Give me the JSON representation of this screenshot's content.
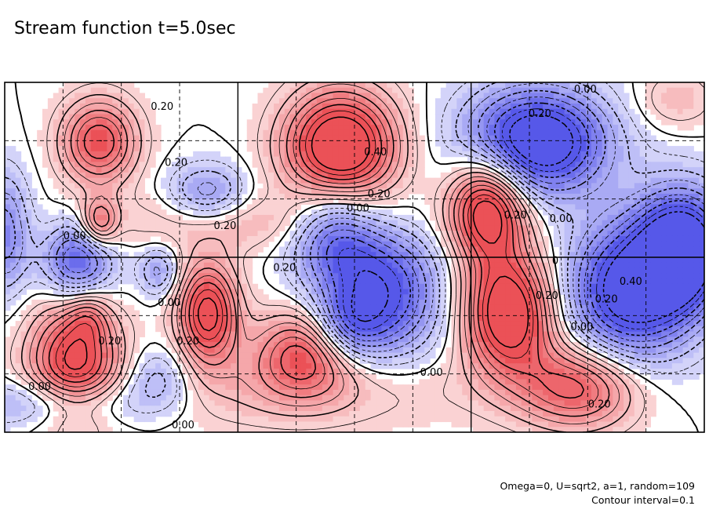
{
  "chart_data": {
    "type": "contour",
    "title": "Stream function t=5.0sec",
    "contour_interval": "Contour interval=0.1",
    "parameters": "Omega=0, U=sqrt2, a=1, random=109",
    "grid": true,
    "grid_columns": 6,
    "grid_rows": 3,
    "contour_labels": [
      {
        "text": "0.20",
        "x": 0.225,
        "y": 0.93
      },
      {
        "text": "0.20",
        "x": 0.245,
        "y": 0.77
      },
      {
        "text": "0.40",
        "x": 0.53,
        "y": 0.8
      },
      {
        "text": "0.20",
        "x": 0.535,
        "y": 0.68
      },
      {
        "text": "0.00",
        "x": 0.505,
        "y": 0.64
      },
      {
        "text": "0.00",
        "x": 0.1,
        "y": 0.56
      },
      {
        "text": "0.20",
        "x": 0.315,
        "y": 0.59
      },
      {
        "text": "0.20",
        "x": 0.4,
        "y": 0.47
      },
      {
        "text": "0.00",
        "x": 0.235,
        "y": 0.37
      },
      {
        "text": "0.20",
        "x": 0.262,
        "y": 0.26
      },
      {
        "text": "0.20",
        "x": 0.15,
        "y": 0.26
      },
      {
        "text": "0.00",
        "x": 0.05,
        "y": 0.13
      },
      {
        "text": "0.00",
        "x": 0.255,
        "y": 0.02
      },
      {
        "text": "0.00",
        "x": 0.61,
        "y": 0.17
      },
      {
        "text": "0.00",
        "x": 0.83,
        "y": 0.98
      },
      {
        "text": "0.20",
        "x": 0.765,
        "y": 0.91
      },
      {
        "text": "0.20",
        "x": 0.73,
        "y": 0.62
      },
      {
        "text": "0.00",
        "x": 0.795,
        "y": 0.61
      },
      {
        "text": "0",
        "x": 0.787,
        "y": 0.49
      },
      {
        "text": "0.20",
        "x": 0.775,
        "y": 0.39
      },
      {
        "text": "0.00",
        "x": 0.825,
        "y": 0.3
      },
      {
        "text": "0.20",
        "x": 0.86,
        "y": 0.38
      },
      {
        "text": "0.40",
        "x": 0.895,
        "y": 0.43
      },
      {
        "text": "0.20",
        "x": 0.85,
        "y": 0.08
      }
    ],
    "positive_extrema": [
      {
        "x": 0.135,
        "y": 0.83,
        "amp": 3.2,
        "sx": 0.038,
        "sy": 0.085
      },
      {
        "x": 0.48,
        "y": 0.81,
        "amp": 5.0,
        "sx": 0.055,
        "sy": 0.115
      },
      {
        "x": 0.69,
        "y": 0.64,
        "amp": 4.4,
        "sx": 0.038,
        "sy": 0.105
      },
      {
        "x": 0.135,
        "y": 0.6,
        "amp": 2.4,
        "sx": 0.018,
        "sy": 0.048
      },
      {
        "x": 0.29,
        "y": 0.34,
        "amp": 4.0,
        "sx": 0.03,
        "sy": 0.1
      },
      {
        "x": 0.1,
        "y": 0.2,
        "amp": 3.8,
        "sx": 0.045,
        "sy": 0.12
      },
      {
        "x": 0.12,
        "y": 0.33,
        "amp": 1.2,
        "sx": 0.02,
        "sy": 0.05
      },
      {
        "x": 0.43,
        "y": 0.23,
        "amp": 3.0,
        "sx": 0.05,
        "sy": 0.085
      },
      {
        "x": 0.72,
        "y": 0.34,
        "amp": 4.6,
        "sx": 0.045,
        "sy": 0.12
      },
      {
        "x": 0.82,
        "y": 0.13,
        "amp": 3.0,
        "sx": 0.06,
        "sy": 0.085
      },
      {
        "x": 0.34,
        "y": 0.6,
        "amp": 1.0,
        "sx": 0.15,
        "sy": 0.06
      },
      {
        "x": 0.4,
        "y": 0.12,
        "amp": 1.0,
        "sx": 0.18,
        "sy": 0.08
      },
      {
        "x": 0.96,
        "y": 0.95,
        "amp": 0.9,
        "sx": 0.04,
        "sy": 0.06
      }
    ],
    "negative_extrema": [
      {
        "x": 0.76,
        "y": 0.83,
        "amp": 4.8,
        "sx": 0.07,
        "sy": 0.105
      },
      {
        "x": 0.47,
        "y": 0.58,
        "amp": 2.8,
        "sx": 0.045,
        "sy": 0.1
      },
      {
        "x": 0.54,
        "y": 0.4,
        "amp": 3.4,
        "sx": 0.06,
        "sy": 0.13
      },
      {
        "x": 0.49,
        "y": 0.3,
        "amp": 2.0,
        "sx": 0.035,
        "sy": 0.07
      },
      {
        "x": 0.29,
        "y": 0.68,
        "amp": 1.8,
        "sx": 0.04,
        "sy": 0.06
      },
      {
        "x": 0.105,
        "y": 0.49,
        "amp": 3.0,
        "sx": 0.035,
        "sy": 0.08
      },
      {
        "x": 0.22,
        "y": 0.46,
        "amp": 1.6,
        "sx": 0.02,
        "sy": 0.05
      },
      {
        "x": 0.0,
        "y": 0.57,
        "amp": 2.2,
        "sx": 0.025,
        "sy": 0.12
      },
      {
        "x": 0.97,
        "y": 0.52,
        "amp": 4.8,
        "sx": 0.045,
        "sy": 0.12
      },
      {
        "x": 0.89,
        "y": 0.4,
        "amp": 4.2,
        "sx": 0.06,
        "sy": 0.14
      },
      {
        "x": 0.22,
        "y": 0.16,
        "amp": 1.4,
        "sx": 0.035,
        "sy": 0.06
      },
      {
        "x": 0.06,
        "y": 0.08,
        "amp": 1.0,
        "sx": 0.08,
        "sy": 0.05
      },
      {
        "x": 0.13,
        "y": 0.09,
        "amp": 0.9,
        "sx": 0.1,
        "sy": 0.05
      }
    ],
    "scale": 0.1,
    "colors": {
      "positive": "#e8373e",
      "negative": "#3d3fe6",
      "background": "#ffffff",
      "frame": "#000000",
      "grid": "#000000"
    }
  }
}
